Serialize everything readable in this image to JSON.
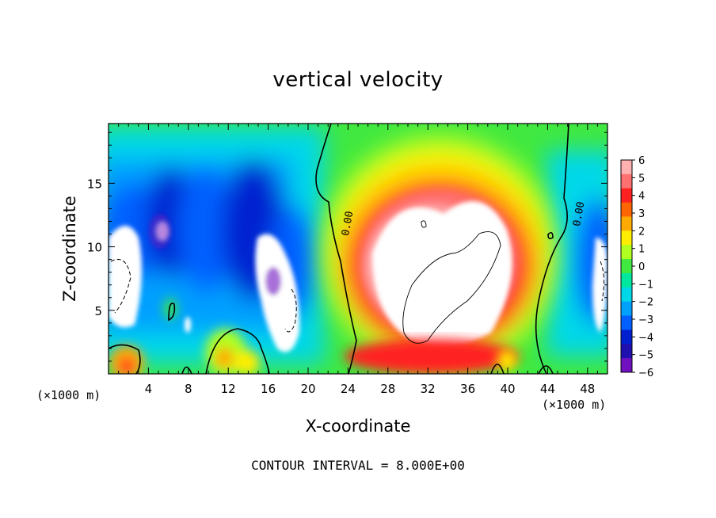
{
  "chart_data": {
    "type": "heatmap",
    "title": "vertical velocity",
    "xlabel": "X-coordinate",
    "ylabel": "Z-coordinate",
    "x_unit": "(×1000 m)",
    "footer": "CONTOUR INTERVAL = 8.000E+00",
    "xlim": [
      0,
      50
    ],
    "ylim": [
      0,
      19.7
    ],
    "x_ticks": [
      4,
      8,
      12,
      16,
      20,
      24,
      28,
      32,
      36,
      40,
      44,
      48
    ],
    "y_ticks": [
      5,
      10,
      15
    ],
    "contour_labels": [
      "0.00",
      "0.00"
    ],
    "colorbar": {
      "ticks": [
        6,
        5,
        4,
        3,
        2,
        1,
        0,
        -1,
        -2,
        -3,
        -4,
        -5,
        -6
      ],
      "colors": [
        "#ffb0b0",
        "#ff7070",
        "#ff2020",
        "#ff6600",
        "#ffaa00",
        "#ffee00",
        "#b0ff20",
        "#40e840",
        "#00e8a0",
        "#00d8e8",
        "#00a0ff",
        "#0060ff",
        "#0020d0",
        "#2010b0",
        "#7010c0"
      ]
    },
    "features": [
      {
        "kind": "updraft",
        "x": 32,
        "z": 9,
        "value": 8
      },
      {
        "kind": "downdraft",
        "x": 18,
        "z": 7,
        "value": -7
      }
    ]
  }
}
